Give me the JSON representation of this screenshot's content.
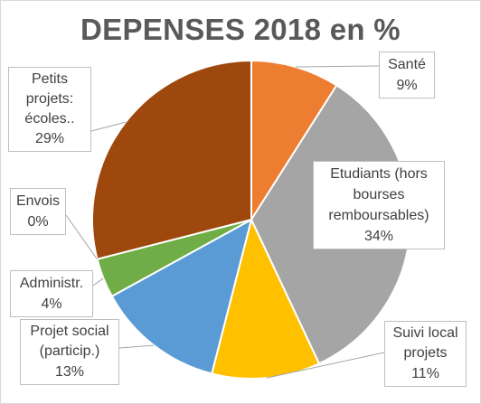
{
  "chart_data": {
    "type": "pie",
    "title": "DEPENSES 2018 en %",
    "slices": [
      {
        "label": "Santé",
        "value": 9,
        "value_label": "9%",
        "color": "#ed7d31"
      },
      {
        "label": "Etudiants (hors bourses remboursables)",
        "value": 34,
        "value_label": "34%",
        "color": "#a5a5a5"
      },
      {
        "label": "Suivi local projets",
        "value": 11,
        "value_label": "11%",
        "color": "#ffc000"
      },
      {
        "label": "Projet social (particip.)",
        "value": 13,
        "value_label": "13%",
        "color": "#5b9bd5"
      },
      {
        "label": "Administr.",
        "value": 4,
        "value_label": "4%",
        "color": "#70ad47"
      },
      {
        "label": "Envois",
        "value": 0,
        "value_label": "0%",
        "color": "#264478"
      },
      {
        "label": "Petits projets: écoles..",
        "value": 29,
        "value_label": "29%",
        "color": "#9e480e"
      }
    ]
  }
}
